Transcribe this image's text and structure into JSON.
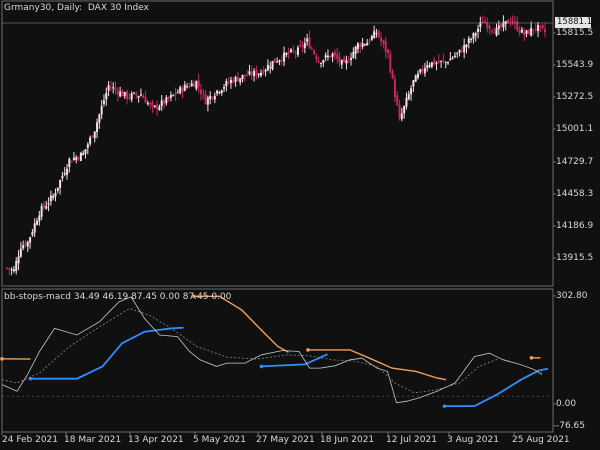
{
  "chart_header": {
    "symbol": "Grmany30",
    "timeframe": "Daily",
    "description": "DAX 30 Index"
  },
  "price_tag": "15881.1",
  "indicator_header": {
    "name": "bb-stops-macd",
    "values": [
      "34.49",
      "46.19",
      "87.45",
      "0.00",
      "87.45",
      "0.00"
    ]
  },
  "price_axis": [
    "15815.5",
    "15543.9",
    "15272.5",
    "15001.1",
    "14729.7",
    "14458.3",
    "14186.9",
    "13915.5"
  ],
  "indicator_axis": [
    "302.80",
    "0.00",
    "-76.65"
  ],
  "time_axis": [
    "24 Feb 2021",
    "18 Mar 2021",
    "13 Apr 2021",
    "5 May 2021",
    "27 May 2021",
    "18 Jun 2021",
    "12 Jul 2021",
    "3 Aug 2021",
    "25 Aug 2021"
  ],
  "colors": {
    "background": "#101010",
    "bull_candle": "#f5e1e4",
    "bear_candle": "#c8285e",
    "upper_stop": "#f0a060",
    "lower_stop": "#2f8fff",
    "macd_line": "#c8c8c8",
    "signal_line": "#8a8a8a",
    "grid": "#6a6a6a"
  },
  "chart_data": [
    {
      "type": "candlestick",
      "title": "Grmany30, Daily: DAX 30 Index",
      "ylim": [
        13780,
        16020
      ],
      "x": [
        "24 Feb 2021",
        "18 Mar 2021",
        "13 Apr 2021",
        "5 May 2021",
        "27 May 2021",
        "18 Jun 2021",
        "12 Jul 2021",
        "3 Aug 2021",
        "25 Aug 2021"
      ],
      "series": [
        {
          "close_anchors": [
            [
              0,
              13900
            ],
            [
              3,
              13880
            ],
            [
              6,
              14080
            ],
            [
              9,
              14110
            ],
            [
              14,
              14350
            ],
            [
              20,
              14480
            ],
            [
              27,
              14770
            ],
            [
              33,
              14820
            ],
            [
              38,
              15020
            ],
            [
              44,
              15370
            ],
            [
              52,
              15280
            ],
            [
              58,
              15300
            ],
            [
              63,
              15180
            ],
            [
              70,
              15260
            ],
            [
              76,
              15350
            ],
            [
              82,
              15400
            ],
            [
              86,
              15250
            ],
            [
              91,
              15330
            ],
            [
              97,
              15410
            ],
            [
              103,
              15450
            ],
            [
              110,
              15480
            ],
            [
              115,
              15560
            ],
            [
              121,
              15620
            ],
            [
              126,
              15650
            ],
            [
              130,
              15730
            ],
            [
              135,
              15570
            ],
            [
              141,
              15620
            ],
            [
              146,
              15530
            ],
            [
              152,
              15700
            ],
            [
              156,
              15720
            ],
            [
              160,
              15800
            ],
            [
              165,
              15620
            ],
            [
              170,
              15090
            ],
            [
              176,
              15400
            ],
            [
              182,
              15550
            ],
            [
              190,
              15560
            ],
            [
              196,
              15640
            ],
            [
              202,
              15770
            ],
            [
              206,
              15890
            ],
            [
              212,
              15810
            ],
            [
              218,
              15900
            ],
            [
              224,
              15780
            ],
            [
              229,
              15840
            ],
            [
              233,
              15800
            ]
          ]
        }
      ]
    },
    {
      "type": "line",
      "title": "bb-stops-macd",
      "ylim": [
        -90,
        302.8
      ],
      "series": [
        {
          "name": "upper_stop",
          "segments": [
            [
              [
                0,
                113
              ],
              [
                19,
                112
              ]
            ],
            [
              [
                128,
                302
              ],
              [
                145,
                302
              ],
              [
                160,
                260
              ],
              [
                175,
                190
              ],
              [
                184,
                150
              ],
              [
                191,
                133
              ]
            ],
            [
              [
                204,
                140
              ],
              [
                232,
                140
              ],
              [
                245,
                115
              ],
              [
                260,
                85
              ],
              [
                276,
                75
              ],
              [
                290,
                55
              ],
              [
                296,
                50
              ]
            ],
            [
              [
                353,
                116
              ],
              [
                359,
                116
              ]
            ]
          ]
        },
        {
          "name": "lower_stop",
          "segments": [
            [
              [
                19,
                53
              ],
              [
                50,
                53
              ],
              [
                67,
                90
              ],
              [
                80,
                160
              ],
              [
                95,
                195
              ],
              [
                113,
                205
              ],
              [
                121,
                207
              ]
            ],
            [
              [
                173,
                90
              ],
              [
                202,
                96
              ],
              [
                217,
                127
              ]
            ],
            [
              [
                295,
                -30
              ],
              [
                315,
                -30
              ],
              [
                330,
                5
              ],
              [
                346,
                50
              ],
              [
                358,
                78
              ],
              [
                364,
                83
              ]
            ]
          ]
        },
        {
          "name": "macd_line",
          "values": [
            [
              0,
              35
            ],
            [
              10,
              15
            ],
            [
              17,
              65
            ],
            [
              25,
              135
            ],
            [
              35,
              205
            ],
            [
              50,
              185
            ],
            [
              65,
              225
            ],
            [
              78,
              285
            ],
            [
              86,
              300
            ],
            [
              95,
              235
            ],
            [
              105,
              185
            ],
            [
              117,
              180
            ],
            [
              125,
              135
            ],
            [
              132,
              110
            ],
            [
              143,
              90
            ],
            [
              150,
              100
            ],
            [
              162,
              100
            ],
            [
              173,
              125
            ],
            [
              187,
              138
            ],
            [
              198,
              135
            ],
            [
              205,
              85
            ],
            [
              212,
              85
            ],
            [
              222,
              92
            ],
            [
              232,
              110
            ],
            [
              240,
              115
            ],
            [
              250,
              85
            ],
            [
              257,
              75
            ],
            [
              263,
              -20
            ],
            [
              270,
              -15
            ],
            [
              278,
              -5
            ],
            [
              290,
              15
            ],
            [
              302,
              40
            ],
            [
              315,
              120
            ],
            [
              325,
              130
            ],
            [
              334,
              110
            ],
            [
              346,
              95
            ],
            [
              355,
              80
            ],
            [
              360,
              65
            ]
          ]
        },
        {
          "name": "signal_line",
          "values": [
            [
              0,
              50
            ],
            [
              10,
              40
            ],
            [
              25,
              70
            ],
            [
              45,
              150
            ],
            [
              65,
              210
            ],
            [
              85,
              265
            ],
            [
              98,
              245
            ],
            [
              113,
              205
            ],
            [
              130,
              150
            ],
            [
              150,
              118
            ],
            [
              170,
              112
            ],
            [
              190,
              125
            ],
            [
              205,
              122
            ],
            [
              220,
              110
            ],
            [
              235,
              106
            ],
            [
              250,
              90
            ],
            [
              262,
              40
            ],
            [
              275,
              10
            ],
            [
              290,
              20
            ],
            [
              305,
              40
            ],
            [
              318,
              90
            ],
            [
              332,
              115
            ],
            [
              346,
              95
            ],
            [
              360,
              72
            ]
          ]
        }
      ]
    }
  ]
}
